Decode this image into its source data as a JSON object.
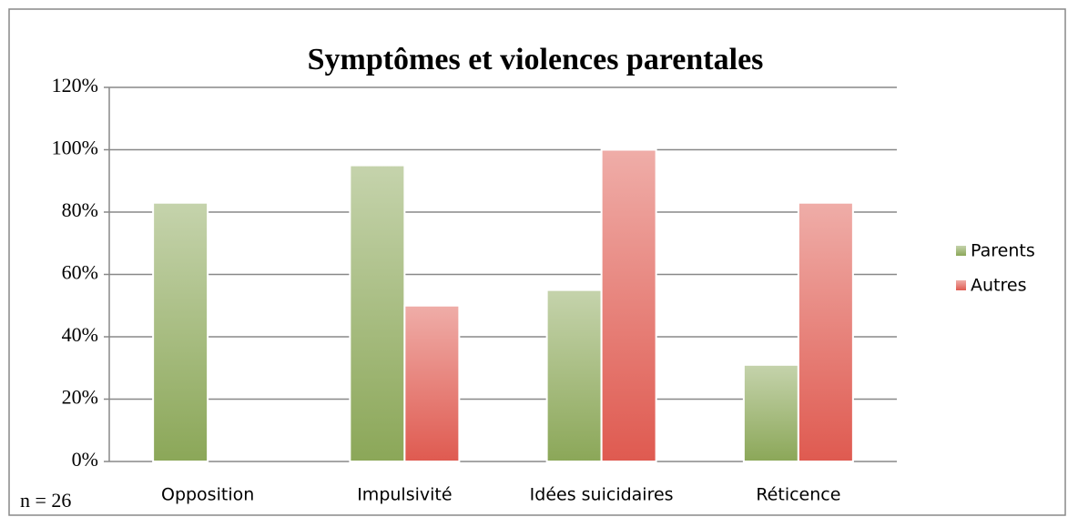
{
  "chart_data": {
    "type": "bar",
    "title": "Symptômes et violences parentales",
    "annotation": "n = 26",
    "categories": [
      "Opposition",
      "Impulsivité",
      "Idées suicidaires",
      "Réticence"
    ],
    "series": [
      {
        "name": "Parents",
        "color": "#8ba758",
        "values": [
          83,
          95,
          55,
          31
        ]
      },
      {
        "name": "Autres",
        "color": "#df5a50",
        "values": [
          0,
          50,
          100,
          83
        ]
      }
    ],
    "ylim": [
      0,
      120
    ],
    "yticks": [
      {
        "value": 0,
        "label": "0%"
      },
      {
        "value": 20,
        "label": "20%"
      },
      {
        "value": 40,
        "label": "40%"
      },
      {
        "value": 60,
        "label": "60%"
      },
      {
        "value": 80,
        "label": "80%"
      },
      {
        "value": 100,
        "label": "100%"
      },
      {
        "value": 120,
        "label": "120%"
      }
    ],
    "grid": true,
    "legend": "right"
  }
}
